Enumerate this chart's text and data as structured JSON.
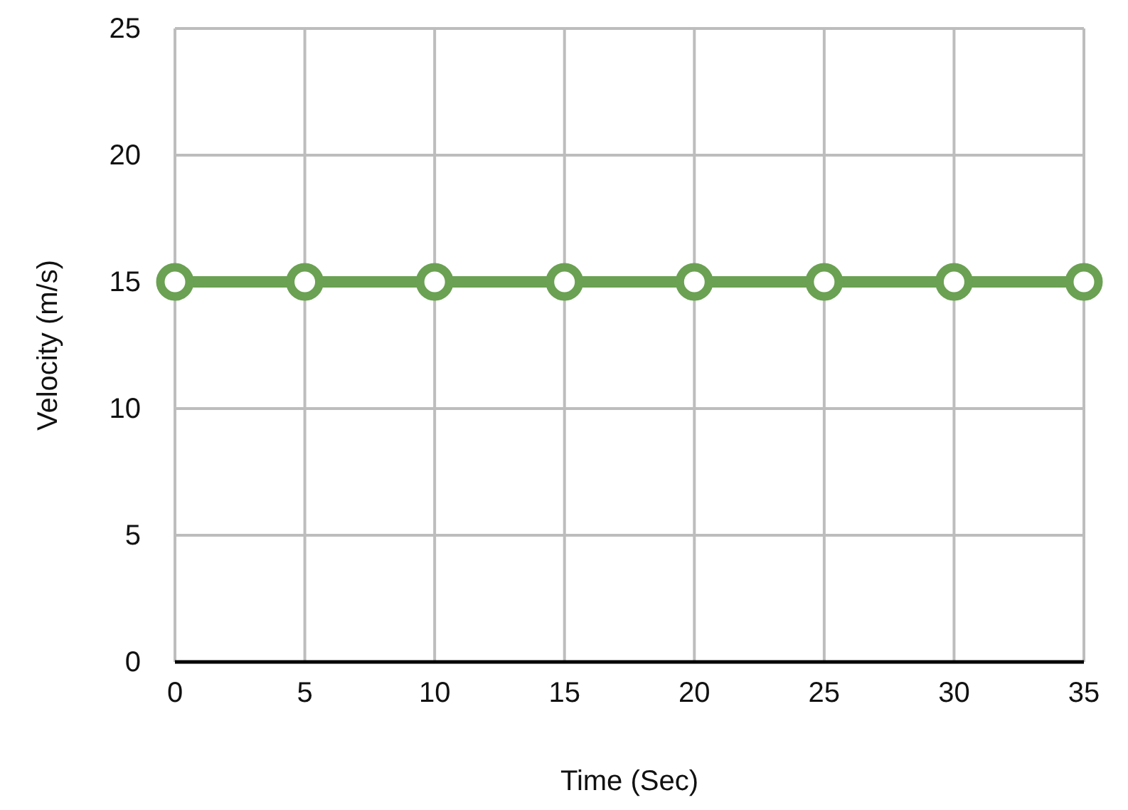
{
  "chart_data": {
    "type": "line",
    "xlabel": "Time (Sec)",
    "ylabel": "Velocity (m/s)",
    "x": [
      0,
      5,
      10,
      15,
      20,
      25,
      30,
      35
    ],
    "series": [
      {
        "color": "#6aa152",
        "values": [
          15,
          15,
          15,
          15,
          15,
          15,
          15,
          15
        ]
      }
    ],
    "xlim": [
      0,
      35
    ],
    "xticks": [
      0,
      5,
      10,
      15,
      20,
      25,
      30,
      35
    ],
    "ylim": [
      0,
      25
    ],
    "yticks": [
      0,
      5,
      10,
      15,
      20,
      25
    ],
    "grid": true,
    "marker": "circle",
    "line_style": "solid"
  }
}
